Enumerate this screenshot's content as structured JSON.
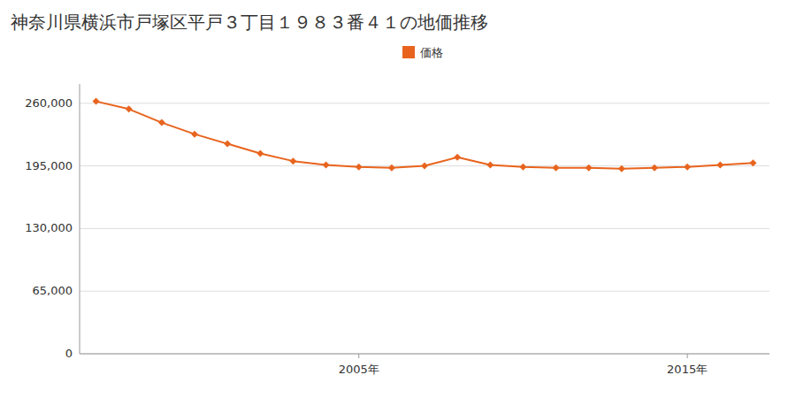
{
  "chart_data": {
    "type": "line",
    "title": "神奈川県横浜市戸塚区平戸３丁目１９８３番４１の地価推移",
    "x": [
      1997,
      1998,
      1999,
      2000,
      2001,
      2002,
      2003,
      2004,
      2005,
      2006,
      2007,
      2008,
      2009,
      2010,
      2011,
      2012,
      2013,
      2014,
      2015,
      2016,
      2017
    ],
    "series": [
      {
        "name": "価格",
        "color": "#e8641e",
        "marker": "diamond",
        "values": [
          262000,
          254000,
          240000,
          228000,
          218000,
          208000,
          200000,
          196000,
          194000,
          193000,
          195000,
          204000,
          196000,
          194000,
          193000,
          193000,
          192000,
          193000,
          194000,
          196000,
          198000
        ]
      }
    ],
    "xlim": [
      1996.5,
      2017.5
    ],
    "xticks": [
      {
        "value": 2005,
        "label": "2005年"
      },
      {
        "value": 2015,
        "label": "2015年"
      }
    ],
    "ylim": [
      0,
      280000
    ],
    "yticks": [
      0,
      {
        "value": 65000,
        "label": "65,000"
      },
      {
        "value": 130000,
        "label": "130,000"
      },
      {
        "value": 195000,
        "label": "195,000"
      },
      {
        "value": 260000,
        "label": "260,000"
      }
    ],
    "grid": true,
    "legend": "top"
  }
}
